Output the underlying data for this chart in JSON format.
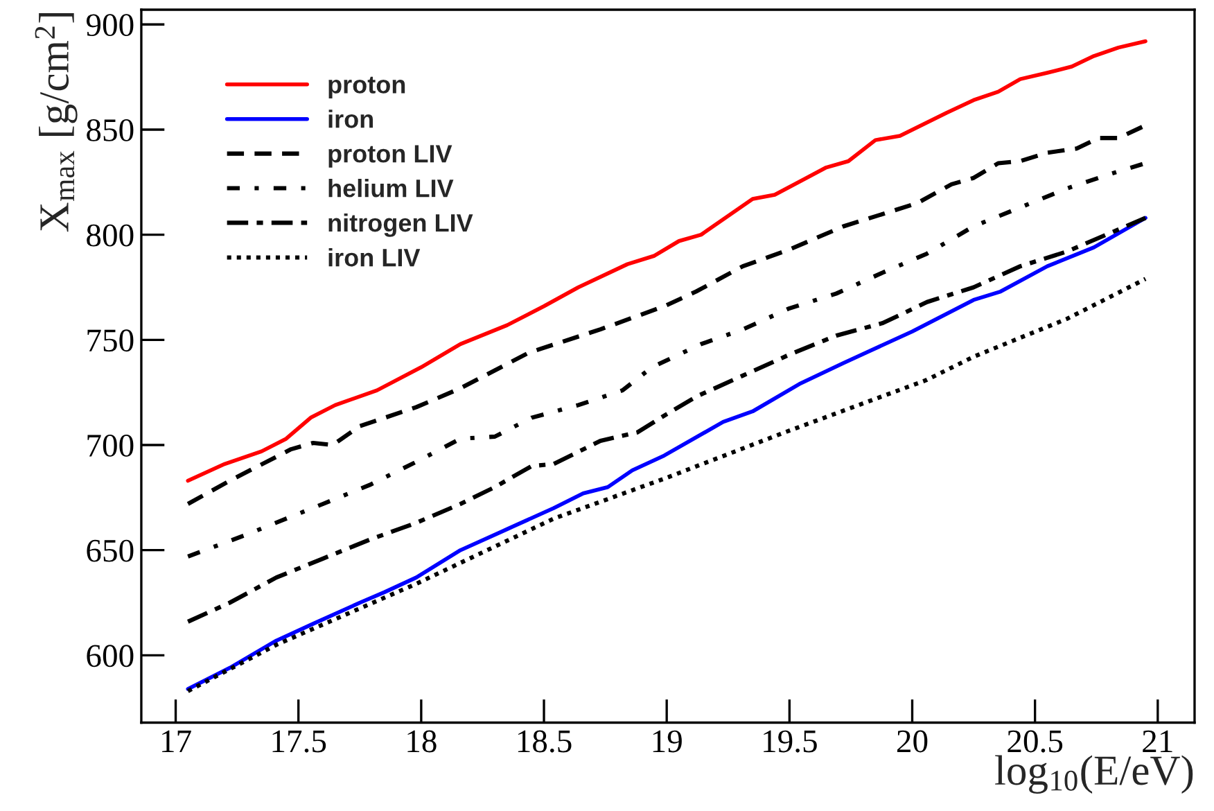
{
  "chart_data": {
    "type": "line",
    "xlabel": "log$_{10}$(E/eV)",
    "ylabel": "X$_{max}$ [g/cm$^{2}$]",
    "xlim": [
      16.86,
      21.15
    ],
    "ylim": [
      568,
      907
    ],
    "xticks": [
      17,
      17.5,
      18,
      18.5,
      19,
      19.5,
      20,
      20.5,
      21
    ],
    "yticks": [
      600,
      650,
      700,
      750,
      800,
      850,
      900
    ],
    "grid": false,
    "legend": "top left",
    "series": [
      {
        "name": "proton",
        "color": "#ff0000",
        "line_style": "solid",
        "x": [
          17.05,
          17.2,
          17.35,
          17.45,
          17.55,
          17.65,
          17.82,
          18.0,
          18.16,
          18.35,
          18.5,
          18.64,
          18.84,
          18.95,
          19.05,
          19.14,
          19.35,
          19.44,
          19.65,
          19.74,
          19.85,
          19.95,
          20.14,
          20.25,
          20.35,
          20.44,
          20.55,
          20.65,
          20.74,
          20.84,
          20.95
        ],
        "values": [
          683,
          691,
          697,
          703,
          713,
          719,
          726,
          737,
          748,
          757,
          766,
          775,
          786,
          790,
          797,
          800,
          817,
          819,
          832,
          835,
          845,
          847,
          858,
          864,
          868,
          874,
          877,
          880,
          885,
          889,
          892
        ]
      },
      {
        "name": "iron",
        "color": "#0000ff",
        "line_style": "solid",
        "x": [
          17.05,
          17.22,
          17.41,
          17.56,
          17.75,
          17.85,
          17.98,
          18.16,
          18.35,
          18.54,
          18.66,
          18.76,
          18.86,
          18.99,
          19.23,
          19.35,
          19.54,
          19.72,
          20.0,
          20.25,
          20.36,
          20.55,
          20.74,
          20.95
        ],
        "values": [
          584,
          594,
          607,
          615,
          625,
          630,
          637,
          650,
          660,
          670,
          677,
          680,
          688,
          695,
          711,
          716,
          729,
          739,
          754,
          769,
          773,
          785,
          794,
          808
        ]
      },
      {
        "name": "proton LIV",
        "color": "#000000",
        "line_style": "dashed",
        "x": [
          17.05,
          17.22,
          17.47,
          17.56,
          17.64,
          17.75,
          17.98,
          18.16,
          18.44,
          18.73,
          18.99,
          19.12,
          19.31,
          19.5,
          19.72,
          20.02,
          20.16,
          20.25,
          20.35,
          20.44,
          20.55,
          20.67,
          20.76,
          20.84,
          20.95
        ],
        "values": [
          672,
          683,
          698,
          701,
          700,
          709,
          718,
          727,
          744,
          755,
          766,
          773,
          785,
          793,
          804,
          815,
          824,
          827,
          834,
          835,
          839,
          841,
          846,
          846,
          852
        ]
      },
      {
        "name": "helium LIV",
        "color": "#000000",
        "line_style": "dashdot",
        "x": [
          17.05,
          17.28,
          17.6,
          17.79,
          17.98,
          18.16,
          18.3,
          18.45,
          18.64,
          18.82,
          18.94,
          19.14,
          19.31,
          19.5,
          19.69,
          19.88,
          20.06,
          20.25,
          20.44,
          20.63,
          20.81,
          20.95
        ],
        "values": [
          647,
          657,
          672,
          681,
          692,
          703,
          704,
          713,
          719,
          726,
          737,
          748,
          755,
          765,
          772,
          782,
          791,
          804,
          813,
          822,
          829,
          834
        ]
      },
      {
        "name": "nitrogen LIV",
        "color": "#000000",
        "line_style": "longdashdot",
        "x": [
          17.05,
          17.22,
          17.41,
          17.6,
          17.79,
          17.98,
          18.16,
          18.3,
          18.45,
          18.54,
          18.73,
          18.88,
          18.99,
          19.12,
          19.31,
          19.5,
          19.69,
          19.88,
          20.06,
          20.25,
          20.44,
          20.63,
          20.81,
          20.95
        ],
        "values": [
          616,
          625,
          637,
          646,
          655,
          663,
          672,
          680,
          690,
          691,
          702,
          706,
          714,
          723,
          733,
          743,
          752,
          758,
          768,
          775,
          785,
          792,
          801,
          808
        ]
      },
      {
        "name": "iron LIV",
        "color": "#000000",
        "line_style": "dotted",
        "x": [
          17.05,
          17.41,
          17.98,
          18.54,
          18.99,
          19.48,
          20.06,
          20.25,
          20.63,
          20.95
        ],
        "values": [
          583,
          605,
          634,
          665,
          684,
          706,
          731,
          742,
          760,
          779
        ]
      }
    ]
  }
}
